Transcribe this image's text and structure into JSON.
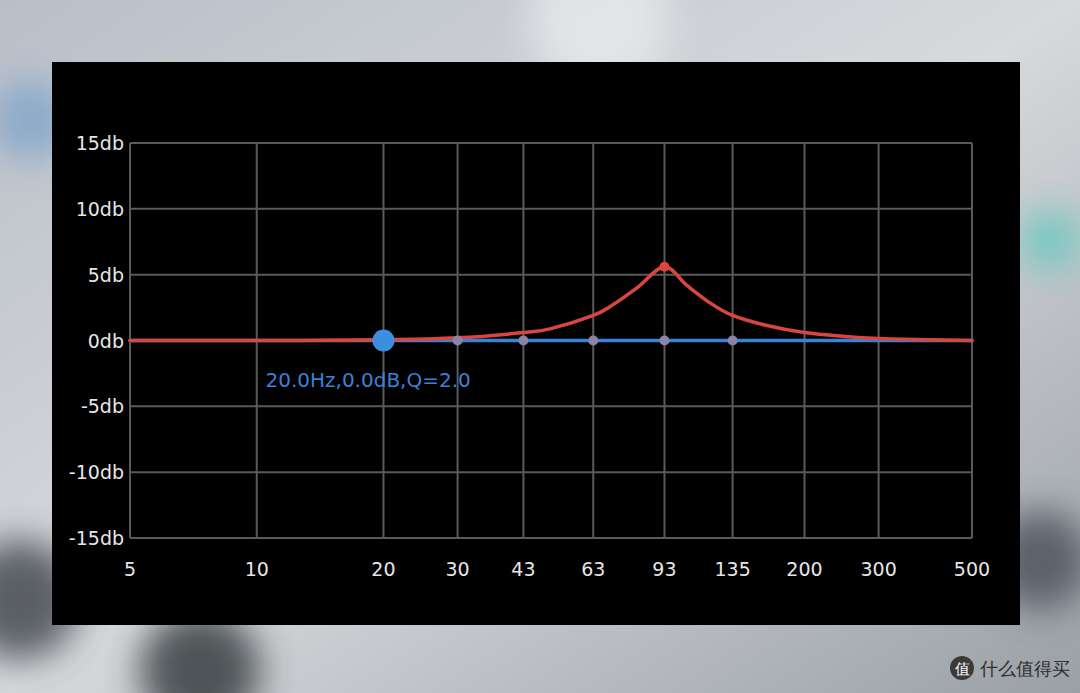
{
  "chart_data": {
    "type": "line",
    "log": "x",
    "grid": true,
    "xlim": [
      5,
      500
    ],
    "xticks": [
      5,
      10,
      20,
      30,
      43,
      63,
      93,
      135,
      200,
      300,
      500
    ],
    "ylim": [
      -15,
      15
    ],
    "yticks": [
      {
        "value": -15,
        "label": "-15db"
      },
      {
        "value": -10,
        "label": "-10db"
      },
      {
        "value": -5,
        "label": "-5db"
      },
      {
        "value": 0,
        "label": "0db"
      },
      {
        "value": 5,
        "label": "5db"
      },
      {
        "value": 10,
        "label": "10db"
      },
      {
        "value": 15,
        "label": "15db"
      }
    ],
    "series": [
      {
        "type": "line",
        "color": "#3b82d6",
        "x": [
          5,
          500
        ],
        "values": [
          0,
          0
        ]
      },
      {
        "type": "line",
        "color": "#d9463f",
        "x": [
          5,
          10,
          20,
          30,
          43,
          50,
          63,
          70,
          80,
          93,
          105,
          120,
          135,
          160,
          200,
          250,
          300,
          400,
          500
        ],
        "values": [
          0,
          0,
          0.05,
          0.2,
          0.6,
          0.9,
          1.9,
          2.7,
          4.0,
          5.6,
          4.2,
          2.8,
          1.9,
          1.2,
          0.6,
          0.3,
          0.15,
          0.05,
          0
        ]
      },
      {
        "type": "scatter",
        "color": "#8c84a8",
        "marker": "dot",
        "x": [
          30,
          43,
          63,
          93,
          135
        ],
        "values": [
          0,
          0,
          0,
          0,
          0
        ]
      },
      {
        "type": "scatter",
        "color": "#d9463f",
        "marker": "dot",
        "x": [
          93
        ],
        "values": [
          5.6
        ]
      },
      {
        "type": "scatter",
        "color": "#3b8ee0",
        "marker": "circle",
        "x": [
          20
        ],
        "values": [
          0
        ]
      }
    ],
    "annotations": [
      {
        "text": "20.0Hz,0.0dB,Q=2.0",
        "x": 20,
        "y": 0,
        "color": "#3b82d6"
      }
    ]
  },
  "watermark": {
    "logo": "值",
    "text": "什么值得买"
  }
}
